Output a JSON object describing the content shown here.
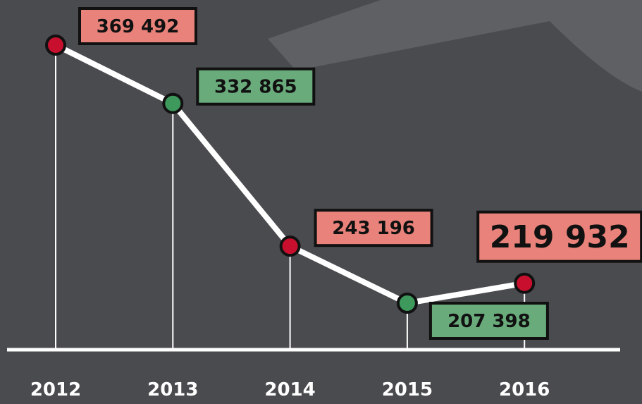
{
  "chart_data": {
    "type": "line",
    "categories": [
      "2012",
      "2013",
      "2014",
      "2015",
      "2016"
    ],
    "values": [
      369492,
      332865,
      243196,
      207398,
      219932
    ],
    "value_labels": [
      "369 492",
      "332 865",
      "243 196",
      "207 398",
      "219 932"
    ],
    "color": "#ffffff",
    "point_colors": [
      "#c8102e",
      "#3d9a5c",
      "#c8102e",
      "#3d9a5c",
      "#c8102e"
    ],
    "label_colors": [
      "#e8827a",
      "#6aab7c",
      "#e8827a",
      "#6aab7c",
      "#e8827a"
    ]
  }
}
